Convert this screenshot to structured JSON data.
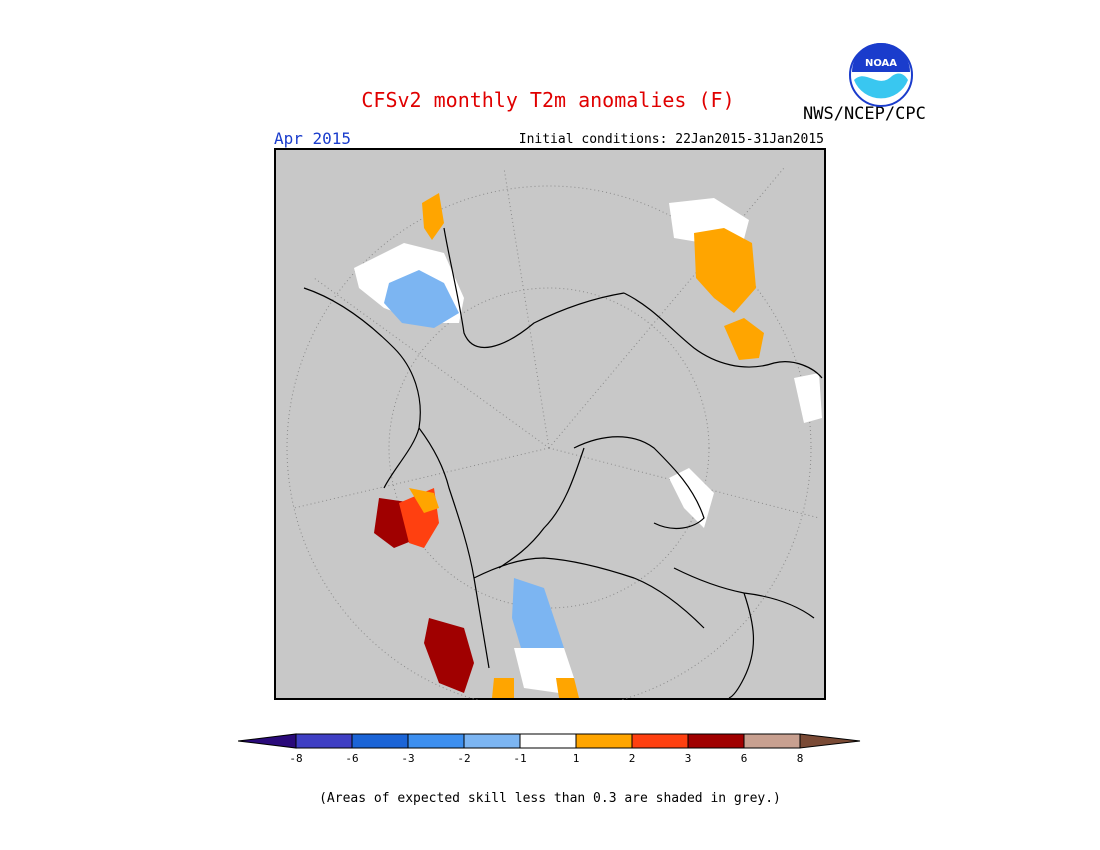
{
  "header": {
    "title": "CFSv2 monthly T2m anomalies (F)",
    "valid_month": "Apr 2015",
    "initial_conditions": "Initial conditions: 22Jan2015-31Jan2015",
    "organization": "NWS/NCEP/CPC",
    "logo_text": "NOAA"
  },
  "colors": {
    "title": "#e00000",
    "month": "#1a3ccc",
    "background_grey": "#c8c8c8",
    "bins": [
      "#2a0a7a",
      "#3f3fc4",
      "#1b64d6",
      "#3d8fef",
      "#7cb5f2",
      "#ffffff",
      "#ffa500",
      "#ff4010",
      "#a00000",
      "#c8a090",
      "#7a4a35"
    ]
  },
  "colorbar": {
    "ticks": [
      "-8",
      "-6",
      "-3",
      "-2",
      "-1",
      "1",
      "2",
      "3",
      "6",
      "8"
    ]
  },
  "footnote": "(Areas of expected skill less than 0.3 are shaded in grey.)"
}
